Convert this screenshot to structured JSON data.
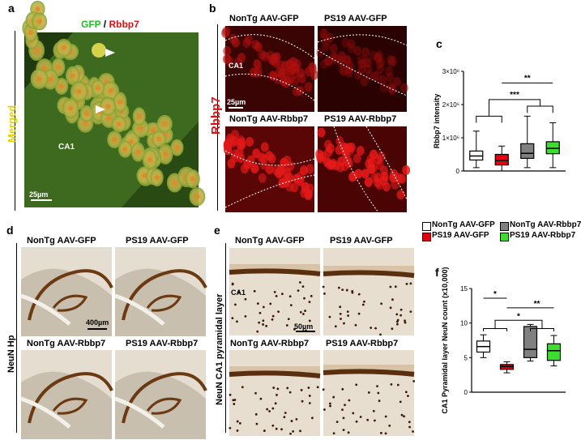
{
  "panel_a": {
    "letter": "a",
    "title_green": "GFP",
    "title_sep": " / ",
    "title_red": "Rbbp7",
    "side_label": "Merged",
    "region": "CA1",
    "scale": "25µm"
  },
  "panel_b": {
    "letter": "b",
    "side_label": "Rbbp7",
    "region": "CA1",
    "scale": "25µm",
    "titles": [
      "NonTg AAV-GFP",
      "PS19 AAV-GFP",
      "NonTg AAV-Rbbp7",
      "PS19 AAV-Rbbp7"
    ]
  },
  "panel_c": {
    "letter": "c",
    "sig": [
      "**",
      "***"
    ]
  },
  "legend": {
    "items": [
      {
        "label": "NonTg AAV-GFP",
        "color": "#ffffff"
      },
      {
        "label": "NonTg AAV-Rbbp7",
        "color": "#808080"
      },
      {
        "label": "PS19 AAV-GFP",
        "color": "#e3000f"
      },
      {
        "label": "PS19 AAV-Rbbp7",
        "color": "#3ddc2e"
      }
    ]
  },
  "panel_d": {
    "letter": "d",
    "side_label": "NeuN Hp",
    "scale": "400µm",
    "titles": [
      "NonTg AAV-GFP",
      "PS19 AAV-GFP",
      "NonTg AAV-Rbbp7",
      "PS19 AAV-Rbbp7"
    ]
  },
  "panel_e": {
    "letter": "e",
    "side_label": "NeuN CA1 pyramidal layer",
    "region": "CA1",
    "scale": "50µm",
    "titles": [
      "NonTg AAV-GFP",
      "PS19 AAV-GFP",
      "NonTg AAV-Rbbp7",
      "PS19 AAV-Rbbp7"
    ]
  },
  "panel_f": {
    "letter": "f",
    "sig": [
      "*",
      "**",
      "*"
    ]
  },
  "chart_data": [
    {
      "panel": "c",
      "type": "box",
      "ylabel": "Rbbp7 intensity",
      "ylim": [
        0,
        3000000
      ],
      "yticks": [
        0,
        1000000,
        2000000,
        3000000
      ],
      "ytick_labels": [
        "0",
        "1×10⁶",
        "2×10⁶",
        "3×10⁶"
      ],
      "categories": [
        "NonTg AAV-GFP",
        "PS19 AAV-GFP",
        "NonTg AAV-Rbbp7",
        "PS19 AAV-Rbbp7"
      ],
      "colors": [
        "#ffffff",
        "#e3000f",
        "#808080",
        "#3ddc2e"
      ],
      "boxes": [
        {
          "min": 100000,
          "q1": 330000,
          "median": 450000,
          "q3": 600000,
          "max": 1200000
        },
        {
          "min": 0,
          "q1": 180000,
          "median": 310000,
          "q3": 500000,
          "max": 750000
        },
        {
          "min": 100000,
          "q1": 380000,
          "median": 530000,
          "q3": 820000,
          "max": 1650000
        },
        {
          "min": 100000,
          "q1": 520000,
          "median": 680000,
          "q3": 880000,
          "max": 1450000
        }
      ]
    },
    {
      "panel": "f",
      "type": "box",
      "ylabel": "CA1 Pyramidal layer NeuN count (x10,000)",
      "ylim": [
        0,
        15
      ],
      "yticks": [
        0,
        5,
        10,
        15
      ],
      "ytick_labels": [
        "0",
        "5",
        "10",
        "15"
      ],
      "categories": [
        "NonTg AAV-GFP",
        "PS19 AAV-GFP",
        "NonTg AAV-Rbbp7",
        "PS19 AAV-Rbbp7"
      ],
      "colors": [
        "#ffffff",
        "#e3000f",
        "#808080",
        "#3ddc2e"
      ],
      "boxes": [
        {
          "min": 5.0,
          "q1": 5.8,
          "median": 6.6,
          "q3": 7.4,
          "max": 8.3
        },
        {
          "min": 2.8,
          "q1": 3.3,
          "median": 3.7,
          "q3": 4.0,
          "max": 4.4
        },
        {
          "min": 4.5,
          "q1": 5.0,
          "median": 6.2,
          "q3": 9.5,
          "max": 9.8
        },
        {
          "min": 3.8,
          "q1": 4.6,
          "median": 6.0,
          "q3": 7.0,
          "max": 8.2
        }
      ]
    }
  ]
}
